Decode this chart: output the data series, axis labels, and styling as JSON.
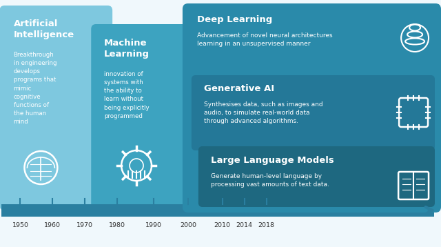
{
  "bg_color": "#f0f8fc",
  "panel1_color": "#7ec8df",
  "panel2_color": "#3da3c0",
  "panel3_color": "#2a8aaa",
  "panel3b_color": "#247898",
  "panel3c_color": "#1e6880",
  "timeline_color": "#2a7fa0",
  "arrow_color": "#2a7fa0",
  "title1": "Artificial\nIntelligence",
  "desc1": "Breakthrough\nin engineering\ndevelops\nprograms that\nmimic\ncognitive\nfunctions of\nthe human\nmind",
  "title2": "Machine\nLearning",
  "desc2": "innovation of\nsystems with\nthe ability to\nlearn without\nbeing explicitly\nprogrammed",
  "title3a": "Deep Learning",
  "desc3a": "Advancement of novel neural architectures\nlearning in an unsupervised manner",
  "title3b": "Generative AI",
  "desc3b": "Synthesises data, such as images and\naudio, to simulate real-world data\nthrough advanced algorithms.",
  "title3c": "Large Language Models",
  "desc3c": "Generate human-level language by\nprocessing vast amounts of text data.",
  "timeline_years": [
    "1950",
    "1960",
    "1970",
    "1980",
    "1990",
    "2000",
    "2010",
    "2014",
    "2018"
  ],
  "year_x": [
    28,
    75,
    122,
    169,
    222,
    272,
    322,
    354,
    386
  ],
  "white": "#ffffff",
  "text_dark": "#333333"
}
